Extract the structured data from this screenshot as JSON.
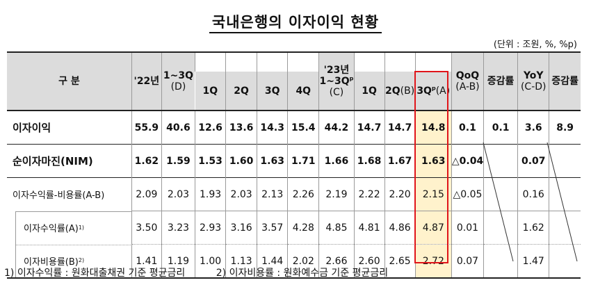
{
  "title": "국내은행의 이자이익 현황",
  "unit": "(단위 : 조원, %, %p)",
  "header": {
    "gubun": "구 분",
    "y22": "'22년",
    "h13q22_top": "1~3Q",
    "h13q22_sub": "(D)",
    "q1": "1Q",
    "q2": "2Q",
    "q3": "3Q",
    "q4": "4Q",
    "h23_top": "'23년",
    "h23_mid_a": "1~3Q",
    "h23_mid_sup": "p",
    "h23_sub": "(C)",
    "q1b": "1Q",
    "q2b_main": "2Q",
    "q2b_sub": "(B)",
    "q3b_main": "3Q",
    "q3b_sup": "p",
    "q3b_sub": "(A)",
    "qoq_top": "QoQ",
    "qoq_sub": "(A-B)",
    "qoq_rate": "증감률",
    "yoy_top": "YoY",
    "yoy_sub": "(C-D)",
    "yoy_rate": "증감률"
  },
  "rows": [
    {
      "label": "이자이익",
      "sup": "",
      "values": [
        "55.9",
        "40.6",
        "12.6",
        "13.6",
        "14.3",
        "15.4",
        "44.2",
        "14.7",
        "14.7",
        "14.8",
        "0.1",
        "0.1",
        "3.6",
        "8.9"
      ]
    },
    {
      "label": "순이자마진(NIM)",
      "sup": "",
      "values": [
        "1.62",
        "1.59",
        "1.53",
        "1.60",
        "1.63",
        "1.71",
        "1.66",
        "1.68",
        "1.67",
        "1.63",
        "△0.04",
        "",
        "0.07",
        ""
      ]
    },
    {
      "label": "이자수익률-비용률(A-B)",
      "sup": "",
      "values": [
        "2.09",
        "2.03",
        "1.93",
        "2.03",
        "2.13",
        "2.26",
        "2.19",
        "2.22",
        "2.20",
        "2.15",
        "△0.05",
        "",
        "0.16",
        ""
      ]
    },
    {
      "label": "이자수익률(A)",
      "sup": "1)",
      "values": [
        "3.50",
        "3.23",
        "2.93",
        "3.16",
        "3.57",
        "4.28",
        "4.85",
        "4.81",
        "4.86",
        "4.87",
        "0.01",
        "",
        "1.62",
        ""
      ]
    },
    {
      "label": "이자비용률(B)",
      "sup": "2)",
      "values": [
        "1.41",
        "1.19",
        "1.00",
        "1.13",
        "1.44",
        "2.02",
        "2.66",
        "2.60",
        "2.65",
        "2.72",
        "0.07",
        "",
        "1.47",
        ""
      ]
    }
  ],
  "footnotes": [
    "1) 이자수익률 : 원화대출채권 기준 평균금리",
    "2) 이자비용률 : 원화예수금 기준 평균금리"
  ]
}
